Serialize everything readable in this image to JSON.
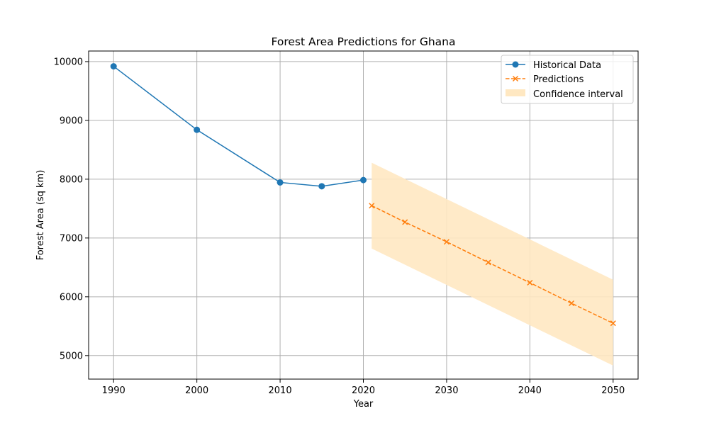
{
  "chart_data": {
    "type": "line",
    "title": "Forest Area Predictions for Ghana",
    "xlabel": "Year",
    "ylabel": "Forest Area (sq km)",
    "xlim": [
      1987,
      2053
    ],
    "ylim": [
      4600,
      10180
    ],
    "x_ticks": [
      1990,
      2000,
      2010,
      2020,
      2030,
      2040,
      2050
    ],
    "y_ticks": [
      5000,
      6000,
      7000,
      8000,
      9000,
      10000
    ],
    "grid": true,
    "legend_position": "top-right",
    "colors": {
      "historical": "#1f77b4",
      "predictions": "#ff7f0e",
      "confidence": "#ffe8c2",
      "grid": "#b0b0b0"
    },
    "series": [
      {
        "name": "Historical Data",
        "style": "solid line with circle markers",
        "x": [
          1990,
          2000,
          2010,
          2015,
          2020
        ],
        "y": [
          9920,
          8840,
          7945,
          7880,
          7985
        ]
      },
      {
        "name": "Predictions",
        "style": "dashed line with x markers",
        "x": [
          2021,
          2025,
          2030,
          2035,
          2040,
          2045,
          2050
        ],
        "y": [
          7550,
          7270,
          6935,
          6585,
          6240,
          5890,
          5550
        ]
      }
    ],
    "confidence_interval": {
      "name": "Confidence interval",
      "x": [
        2021,
        2050
      ],
      "lower": [
        6820,
        4830
      ],
      "upper": [
        8280,
        6290
      ]
    }
  }
}
